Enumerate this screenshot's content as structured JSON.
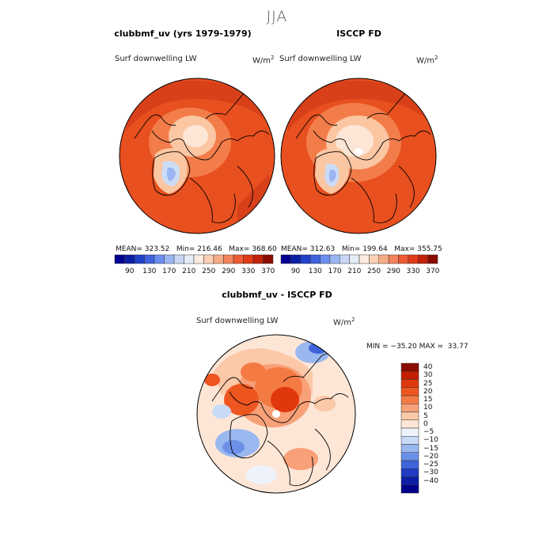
{
  "season": "JJA",
  "top_left": {
    "title": "clubbmf_uv (yrs 1979-1979)",
    "variable": "Surf downwelling LW",
    "units": "W/m",
    "units_exp": "2",
    "stats": "MEAN= 323.52   Min= 216.46   Max= 368.60",
    "mean": 323.52,
    "min": 216.46,
    "max": 368.6
  },
  "top_right": {
    "title": "ISCCP FD",
    "variable": "Surf downwelling LW",
    "units": "W/m",
    "units_exp": "2",
    "stats": "MEAN= 312.63   Min= 199.64   Max= 355.75",
    "mean": 312.63,
    "min": 199.64,
    "max": 355.75
  },
  "abs_colorbar": {
    "tick_labels": [
      "90",
      "130",
      "170",
      "210",
      "250",
      "290",
      "330",
      "370"
    ],
    "colors": [
      "#000090",
      "#0b1ea6",
      "#2040c8",
      "#3f63e0",
      "#6b8ff0",
      "#9cb6f4",
      "#c8d8f4",
      "#e4ecf6",
      "#fdece0",
      "#fbd0b4",
      "#f8ac86",
      "#f4845c",
      "#ee5a32",
      "#e03a16",
      "#c22008",
      "#8a0c00"
    ]
  },
  "bottom": {
    "title": "clubbmf_uv - ISCCP FD",
    "variable": "Surf downwelling LW",
    "units": "W/m",
    "units_exp": "2",
    "stats": "MIN = −35.20 MAX =  33.77",
    "min": -35.2,
    "max": 33.77
  },
  "diff_colorbar": {
    "tick_labels": [
      "40",
      "30",
      "25",
      "20",
      "15",
      "10",
      "5",
      "0",
      "−5",
      "−10",
      "−15",
      "−20",
      "−25",
      "−30",
      "−40"
    ],
    "colors": [
      "#8a0c00",
      "#c41e00",
      "#e0380c",
      "#ee5620",
      "#f47a44",
      "#f8a078",
      "#fbc8a8",
      "#fde6d6",
      "#eef2fa",
      "#c8daf6",
      "#9ab8f0",
      "#6c90e8",
      "#3f64da",
      "#1e3cc4",
      "#0c1ea6",
      "#000088"
    ]
  },
  "map_colors": {
    "ocean_abs": "#e8501f",
    "ocean_abs_deep": "#d8401a",
    "ice_warm": "#f27d4a",
    "ice_light": "#fbc6a2",
    "greenland_low": "#cddcf6",
    "diff_neutral": "#fde6d6",
    "diff_red": "#e0380c",
    "diff_blue": "#6c90e8"
  }
}
